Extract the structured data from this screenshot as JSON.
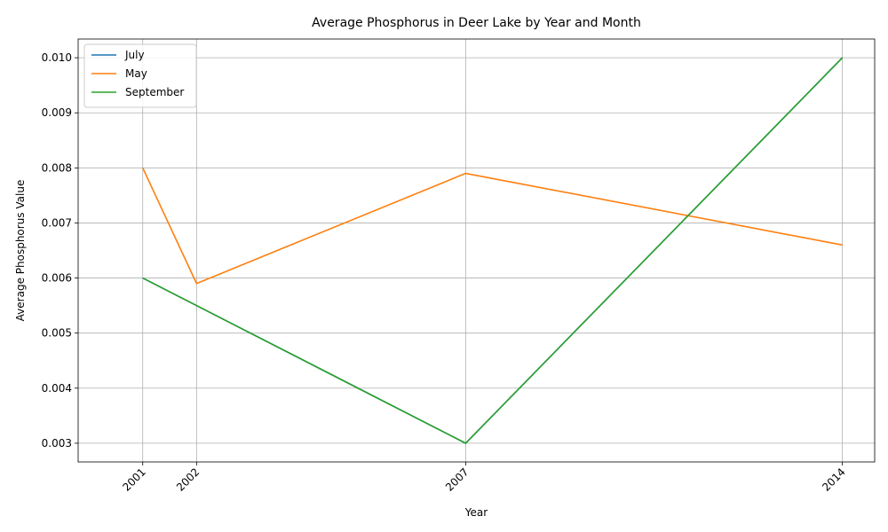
{
  "chart_data": {
    "type": "line",
    "title": "Average Phosphorus in Deer Lake by Year and Month",
    "xlabel": "Year",
    "ylabel": "Average Phosphorus Value",
    "xlim": [
      1999.8,
      2014.6
    ],
    "ylim": [
      0.00266,
      0.01034
    ],
    "x_ticks": [
      2001,
      2002,
      2007,
      2014
    ],
    "y_ticks": [
      0.003,
      0.004,
      0.005,
      0.006,
      0.007,
      0.008,
      0.009,
      0.01
    ],
    "y_tick_labels": [
      "0.003",
      "0.004",
      "0.005",
      "0.006",
      "0.007",
      "0.008",
      "0.009",
      "0.010"
    ],
    "grid": true,
    "legend_position": "top-left",
    "series": [
      {
        "name": "July",
        "color": "#1f77b4",
        "x": [
          2001,
          2007,
          2014
        ],
        "values": [
          0.006,
          0.003,
          0.01
        ]
      },
      {
        "name": "May",
        "color": "#ff7f0e",
        "x": [
          2001,
          2002,
          2007,
          2014
        ],
        "values": [
          0.008,
          0.0059,
          0.0079,
          0.0066
        ]
      },
      {
        "name": "September",
        "color": "#2ca02c",
        "x": [
          2001,
          2007,
          2014
        ],
        "values": [
          0.006,
          0.003,
          0.01
        ]
      }
    ]
  }
}
